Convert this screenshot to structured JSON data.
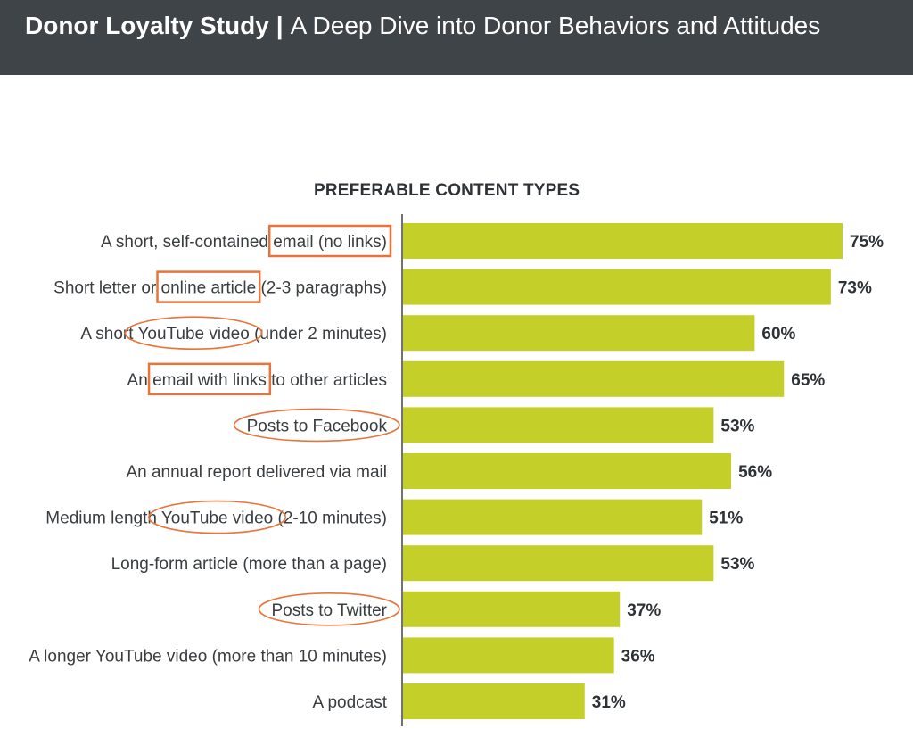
{
  "header": {
    "title_bold": "Donor Loyalty Study",
    "separator": "|",
    "subtitle": "A Deep Dive into Donor Behaviors and Attitudes"
  },
  "colors": {
    "bar": "#c5cf2a",
    "annotation": "#e8743b",
    "axis": "#444444"
  },
  "chart_data": {
    "type": "bar",
    "orientation": "horizontal",
    "title": "PREFERABLE CONTENT TYPES",
    "xlabel": "",
    "ylabel": "",
    "xlim": [
      0,
      100
    ],
    "grid": false,
    "categories": [
      "A short, self-contained email (no links)",
      "Short letter or online article (2-3 paragraphs)",
      "A short YouTube video (under 2 minutes)",
      "An email with links to other articles",
      "Posts to Facebook",
      "An annual report delivered via mail",
      "Medium length YouTube video (2-10 minutes)",
      "Long-form article (more than a page)",
      "Posts to Twitter",
      "A longer YouTube video (more than 10 minutes)",
      "A podcast"
    ],
    "values": [
      75,
      73,
      60,
      65,
      53,
      56,
      51,
      53,
      37,
      36,
      31
    ],
    "value_labels": [
      "75%",
      "73%",
      "60%",
      "65%",
      "53%",
      "56%",
      "51%",
      "53%",
      "37%",
      "36%",
      "31%"
    ],
    "annotations": [
      {
        "category_index": 0,
        "text": "email (no links)",
        "shape": "rectangle"
      },
      {
        "category_index": 1,
        "text": "online article",
        "shape": "rectangle"
      },
      {
        "category_index": 2,
        "text": "YouTube video",
        "shape": "ellipse"
      },
      {
        "category_index": 3,
        "text": "email with links",
        "shape": "rectangle"
      },
      {
        "category_index": 4,
        "text": "Posts to Facebook",
        "shape": "ellipse"
      },
      {
        "category_index": 6,
        "text": "YouTube video",
        "shape": "ellipse"
      },
      {
        "category_index": 8,
        "text": "Posts to Twitter",
        "shape": "ellipse"
      }
    ]
  }
}
